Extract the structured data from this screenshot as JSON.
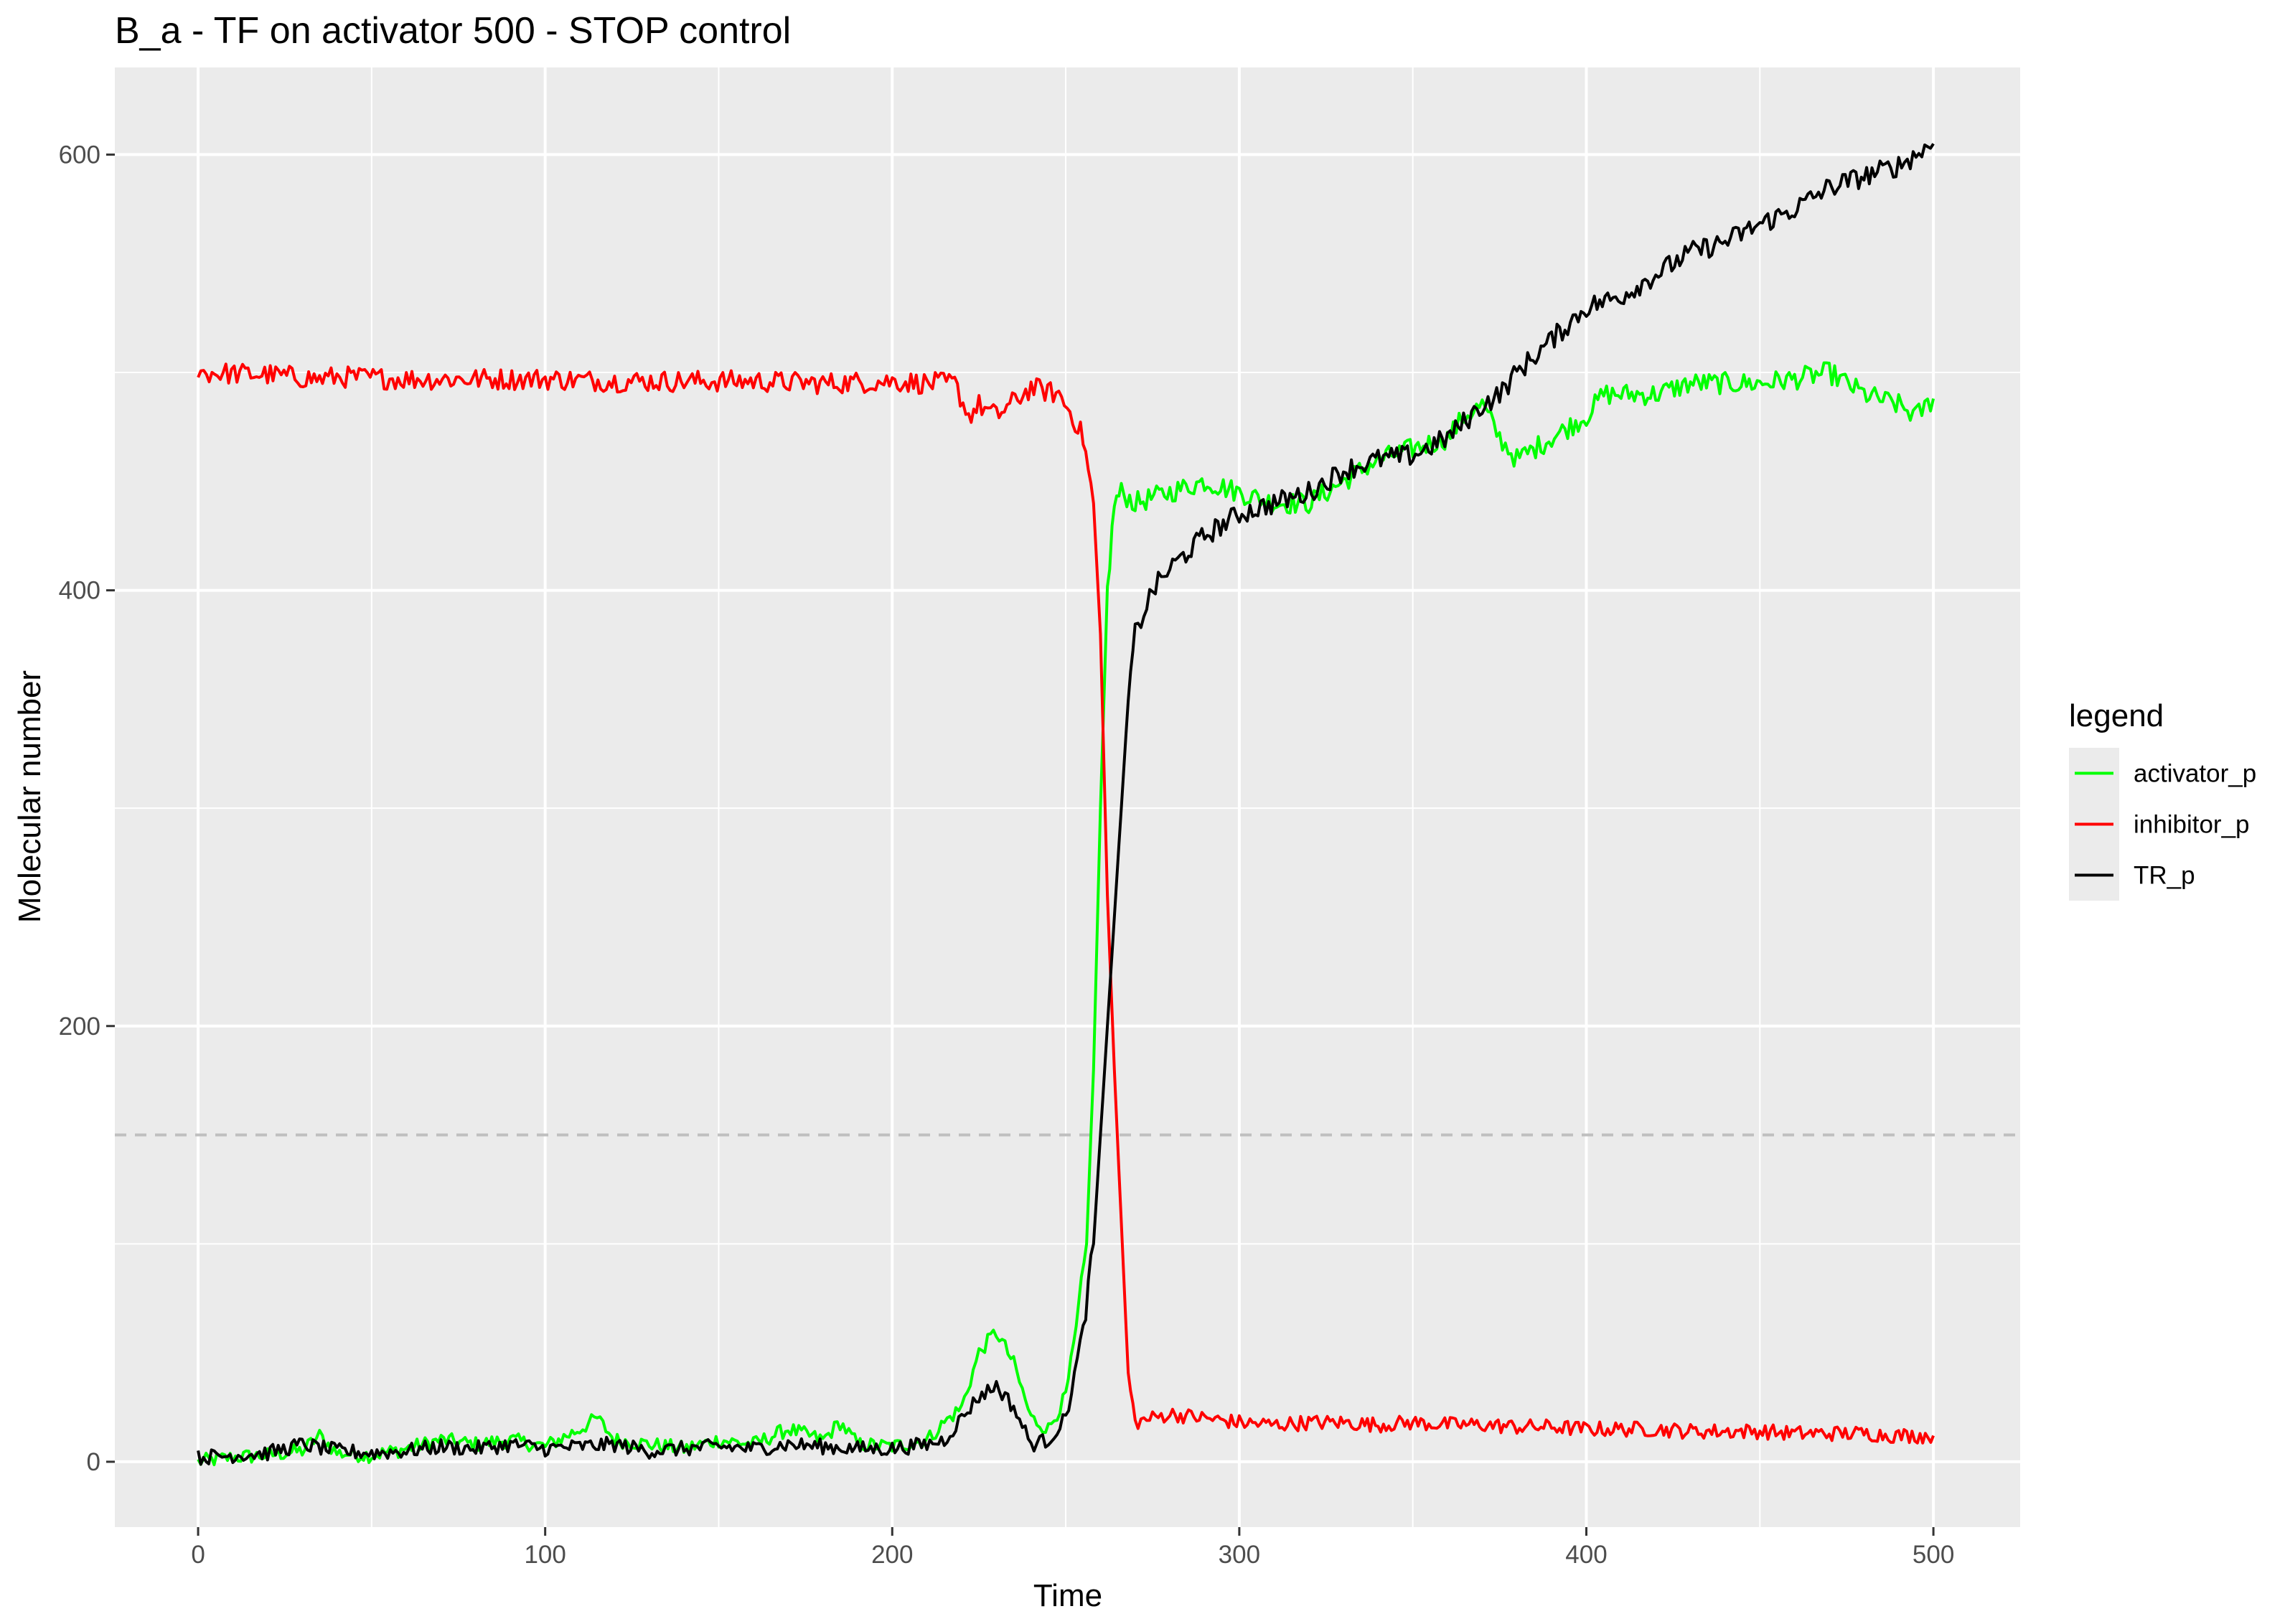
{
  "chart_data": {
    "type": "line",
    "title": "B_a - TF on activator 500 - STOP control",
    "xlabel": "Time",
    "ylabel": "Molecular number",
    "xlim": [
      -24,
      525
    ],
    "ylim": [
      -30,
      640
    ],
    "xticks": [
      0,
      100,
      200,
      300,
      400,
      500
    ],
    "yticks": [
      0,
      200,
      400,
      600
    ],
    "grid": true,
    "background": "#ebebeb",
    "reference_line": {
      "y": 150,
      "style": "dashed",
      "color": "#bfbfbf"
    },
    "legend": {
      "title": "legend",
      "position": "right",
      "entries": [
        "activator_p",
        "inhibitor_p",
        "TR_p"
      ]
    },
    "series": [
      {
        "name": "activator_p",
        "color": "#00ff00",
        "x": [
          0,
          10,
          20,
          30,
          35,
          40,
          50,
          60,
          70,
          80,
          90,
          100,
          110,
          115,
          120,
          130,
          140,
          150,
          160,
          170,
          180,
          185,
          190,
          200,
          210,
          215,
          220,
          225,
          230,
          235,
          240,
          245,
          250,
          253,
          256,
          258,
          260,
          262,
          264,
          266,
          270,
          280,
          290,
          300,
          310,
          320,
          330,
          340,
          350,
          360,
          365,
          370,
          375,
          380,
          390,
          400,
          405,
          410,
          420,
          430,
          440,
          450,
          460,
          470,
          480,
          490,
          495,
          500
        ],
        "y": [
          0,
          2,
          3,
          5,
          12,
          4,
          3,
          6,
          10,
          8,
          10,
          7,
          15,
          20,
          10,
          8,
          6,
          10,
          8,
          15,
          10,
          18,
          8,
          7,
          10,
          18,
          25,
          50,
          60,
          45,
          20,
          15,
          30,
          60,
          100,
          180,
          300,
          400,
          440,
          445,
          440,
          445,
          450,
          445,
          440,
          440,
          450,
          460,
          465,
          470,
          480,
          485,
          470,
          460,
          470,
          480,
          490,
          490,
          490,
          495,
          495,
          495,
          497,
          500,
          490,
          485,
          480,
          488
        ]
      },
      {
        "name": "inhibitor_p",
        "color": "#ff0000",
        "x": [
          0,
          20,
          35,
          40,
          60,
          80,
          100,
          120,
          140,
          160,
          180,
          200,
          210,
          218,
          222,
          225,
          230,
          240,
          248,
          252,
          255,
          258,
          260,
          262,
          264,
          266,
          268,
          270,
          275,
          280,
          290,
          300,
          310,
          320,
          330,
          340,
          350,
          360,
          370,
          380,
          390,
          400,
          410,
          420,
          430,
          440,
          450,
          460,
          470,
          480,
          490,
          500
        ],
        "y": [
          500,
          499,
          497,
          498,
          497,
          497,
          497,
          496,
          496,
          496,
          495,
          496,
          495,
          495,
          480,
          485,
          480,
          493,
          490,
          480,
          470,
          440,
          380,
          260,
          180,
          110,
          40,
          18,
          20,
          22,
          20,
          18,
          17,
          18,
          18,
          17,
          18,
          17,
          17,
          16,
          16,
          15,
          15,
          15,
          14,
          14,
          14,
          13,
          13,
          13,
          12,
          12
        ]
      },
      {
        "name": "TR_p",
        "color": "#000000",
        "x": [
          0,
          10,
          20,
          30,
          40,
          50,
          60,
          70,
          80,
          90,
          100,
          110,
          120,
          130,
          140,
          150,
          160,
          170,
          180,
          190,
          200,
          210,
          215,
          220,
          225,
          230,
          235,
          240,
          245,
          250,
          255,
          258,
          260,
          262,
          264,
          266,
          268,
          270,
          275,
          280,
          290,
          300,
          310,
          320,
          330,
          340,
          350,
          360,
          370,
          375,
          380,
          390,
          400,
          410,
          420,
          430,
          440,
          450,
          460,
          470,
          480,
          490,
          495,
          500
        ],
        "y": [
          2,
          3,
          4,
          8,
          5,
          4,
          5,
          7,
          6,
          8,
          6,
          7,
          8,
          5,
          6,
          7,
          6,
          8,
          7,
          6,
          6,
          8,
          10,
          20,
          30,
          35,
          25,
          8,
          10,
          20,
          60,
          100,
          150,
          200,
          250,
          300,
          350,
          380,
          400,
          410,
          425,
          435,
          440,
          445,
          455,
          460,
          462,
          470,
          485,
          490,
          500,
          515,
          530,
          535,
          545,
          555,
          560,
          568,
          575,
          585,
          590,
          595,
          600,
          605
        ]
      }
    ]
  }
}
